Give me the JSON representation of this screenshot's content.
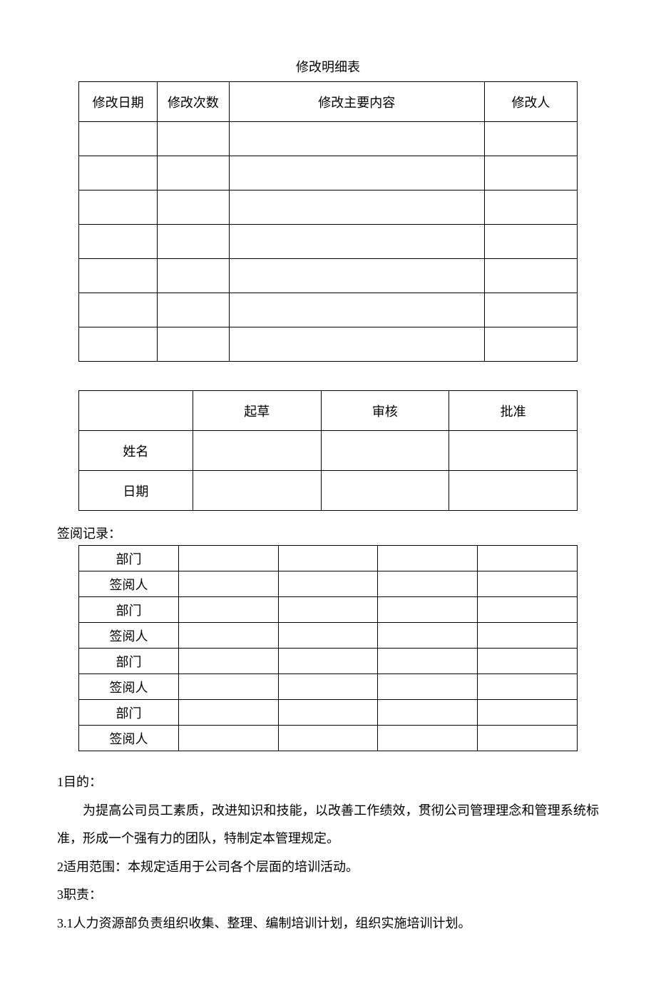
{
  "doc": {
    "table1_title": "修改明细表",
    "table1": {
      "headers": [
        "修改日期",
        "修改次数",
        "修改主要内容",
        "修改人"
      ],
      "blank_rows": 7
    },
    "table2": {
      "col_headers": [
        "起草",
        "审核",
        "批准"
      ],
      "row_labels": [
        "姓名",
        "日期"
      ]
    },
    "review_label": "签阅记录：",
    "table3": {
      "row_labels": [
        "部门",
        "签阅人",
        "部门",
        "签阅人",
        "部门",
        "签阅人",
        "部门",
        "签阅人"
      ]
    },
    "sections": {
      "s1_h": "1目的：",
      "s1_p": "为提高公司员工素质，改进知识和技能，以改善工作绩效，贯彻公司管理理念和管理系统标准，形成一个强有力的团队，特制定本管理规定。",
      "s2": "2适用范围：本规定适用于公司各个层面的培训活动。",
      "s3_h": "3职责：",
      "s3_1": "3.1人力资源部负责组织收集、整理、编制培训计划，组织实施培训计划。"
    },
    "colors": {
      "text": "#000000",
      "border": "#000000",
      "bg": "#ffffff"
    }
  }
}
